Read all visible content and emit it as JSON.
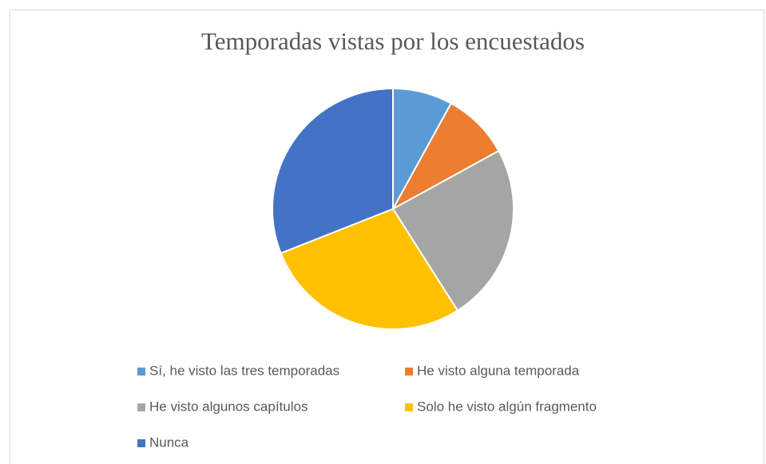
{
  "chart_data": {
    "type": "pie",
    "title": "Temporadas vistas por los encuestados",
    "categories": [
      "Sí, he visto las tres temporadas",
      "He visto alguna temporada",
      "He visto algunos capítulos",
      "Solo he visto algún fragmento",
      "Nunca"
    ],
    "values": [
      8,
      9,
      24,
      28,
      31
    ],
    "colors": [
      "#5b9bd5",
      "#ed7d31",
      "#a5a5a5",
      "#ffc000",
      "#4472c4"
    ],
    "legend": "bottom"
  }
}
